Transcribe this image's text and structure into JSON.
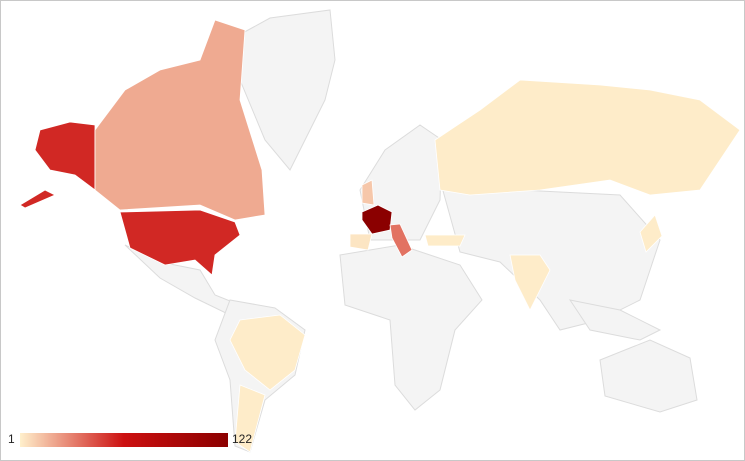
{
  "chart_data": {
    "type": "geo",
    "values": [
      55,
      20,
      122,
      35,
      12,
      4,
      2,
      2,
      2,
      2,
      2,
      2
    ],
    "color_axis": {
      "min": 1,
      "max": 122,
      "colors": [
        "#fff0cc",
        "#cc1010",
        "#8b0000"
      ]
    },
    "background": "#ffffff"
  }
}
